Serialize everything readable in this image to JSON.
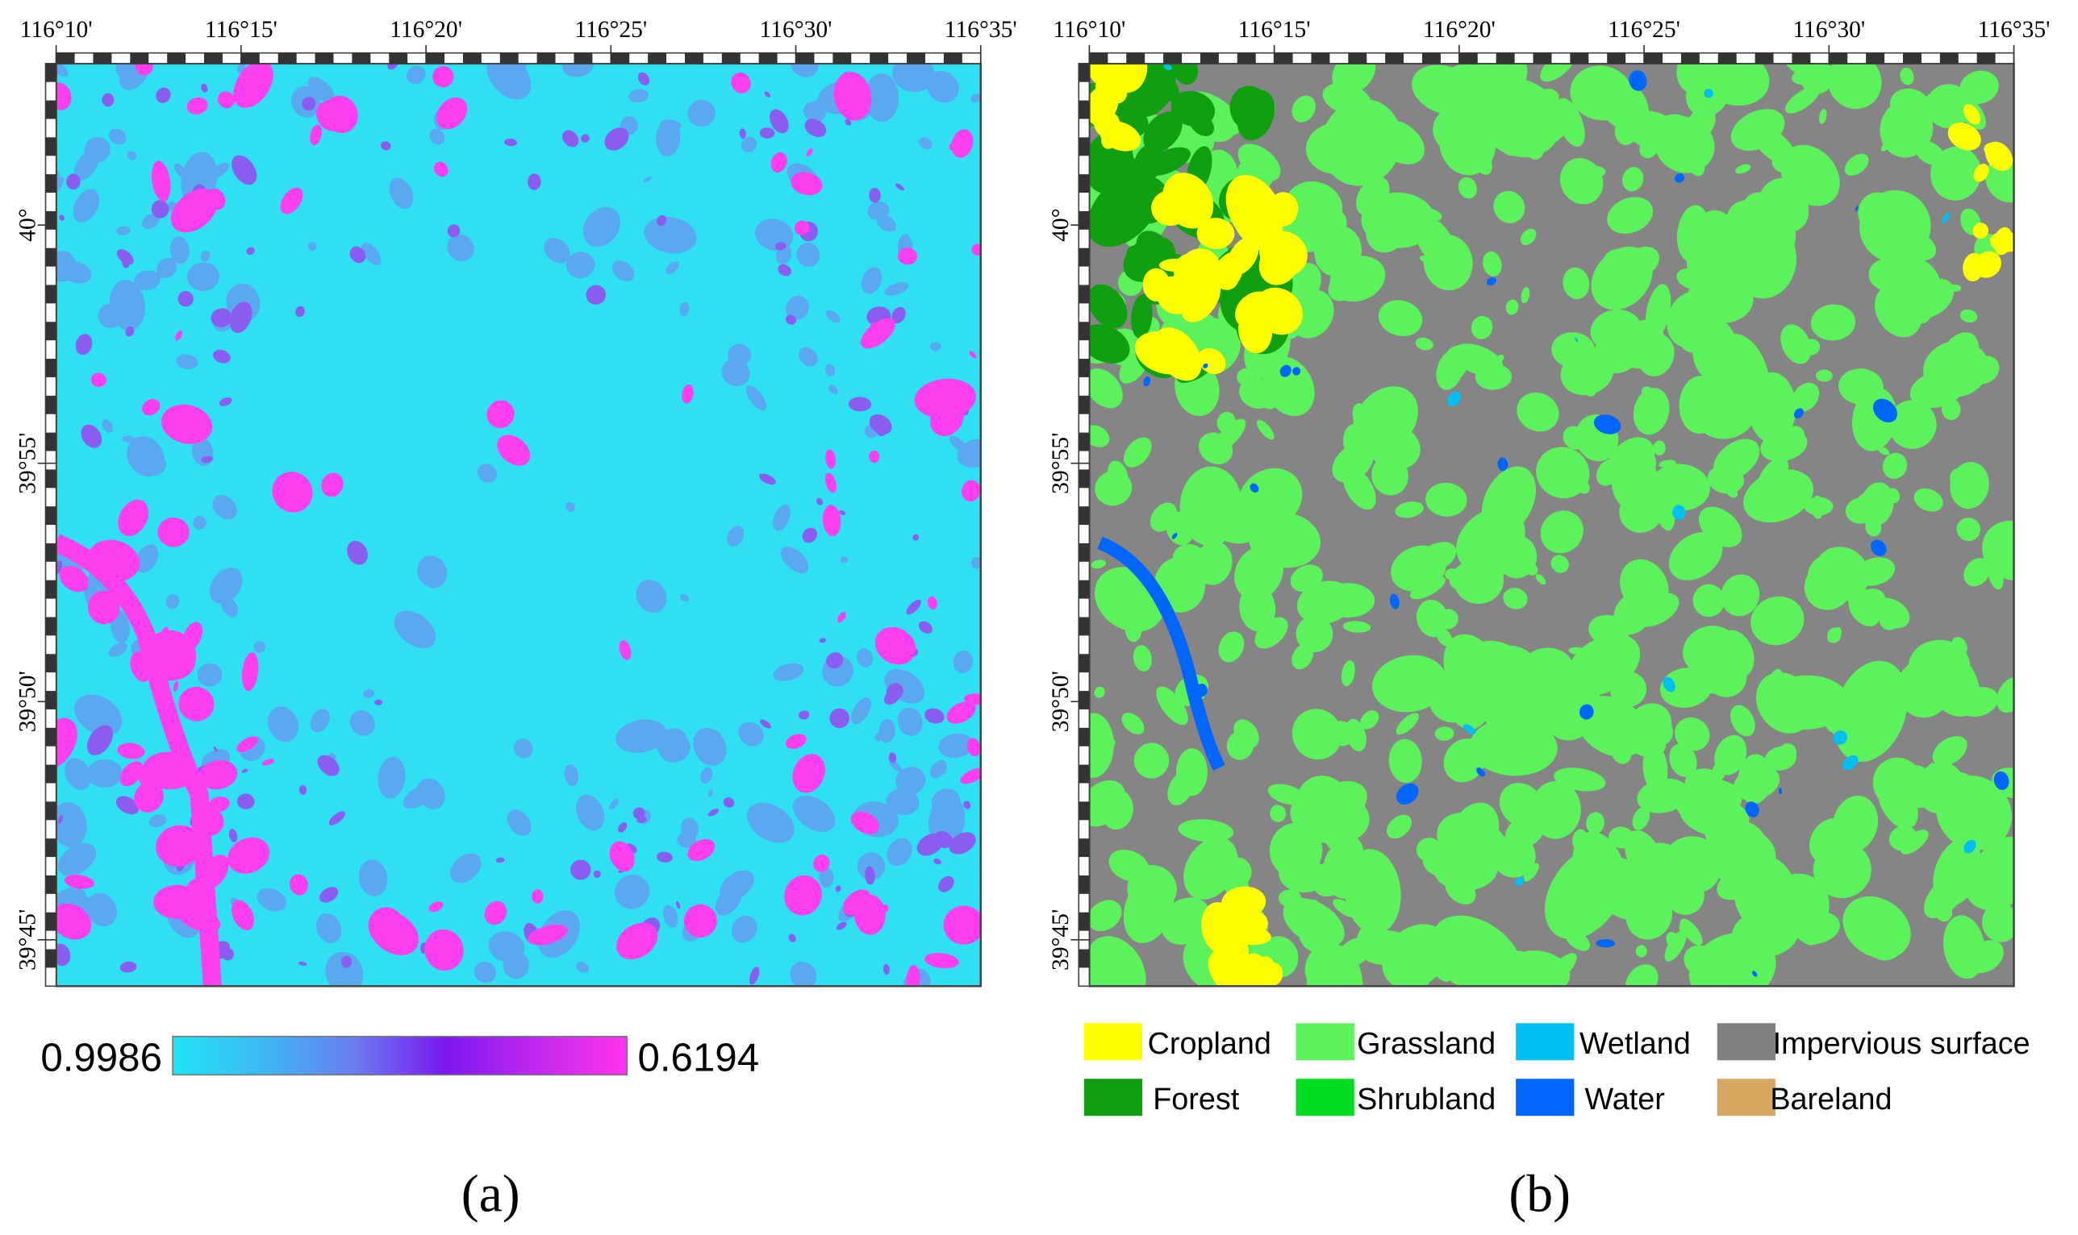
{
  "panels": [
    {
      "label": "(a)",
      "lon_ticks": [
        "116°10'",
        "116°15'",
        "116°20'",
        "116°25'",
        "116°30'",
        "116°35'"
      ],
      "lat_ticks": [
        "40°",
        "39°55'",
        "39°50'",
        "39°45'"
      ],
      "colorbar": {
        "min_label": "0.9986",
        "max_label": "0.6194",
        "colors": [
          "#22e4f4",
          "#3cb8f4",
          "#6a7cf0",
          "#7a18ee",
          "#c228ee",
          "#ff33ee"
        ]
      }
    },
    {
      "label": "(b)",
      "lon_ticks": [
        "116°10'",
        "116°15'",
        "116°20'",
        "116°25'",
        "116°30'",
        "116°35'"
      ],
      "lat_ticks": [
        "40°",
        "39°55'",
        "39°50'",
        "39°45'"
      ],
      "legend": [
        {
          "name": "Cropland",
          "color": "#ffff00"
        },
        {
          "name": "Grassland",
          "color": "#5cf25c"
        },
        {
          "name": "Wetland",
          "color": "#00bff3"
        },
        {
          "name": "Impervious surface",
          "color": "#808080"
        },
        {
          "name": "Forest",
          "color": "#0f9f0f"
        },
        {
          "name": "Shrubland",
          "color": "#00dd20"
        },
        {
          "name": "Water",
          "color": "#0066ff"
        },
        {
          "name": "Bareland",
          "color": "#d9a860"
        }
      ]
    }
  ]
}
